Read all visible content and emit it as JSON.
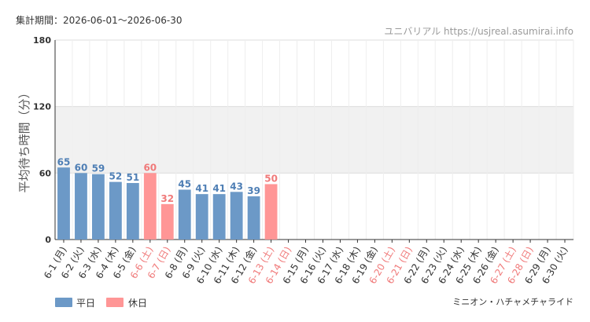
{
  "header": {
    "period": "集計期間：2026-06-01～2026-06-30",
    "site": "ユニバリアル  https://usjreal.asumirai.info"
  },
  "footer": {
    "attraction": "ミニオン・ハチャメチャライド"
  },
  "colors": {
    "weekday": "#6c99c7",
    "holiday": "#ff9696",
    "weekday_text": "#4f7fb5",
    "holiday_text": "#f07a7a",
    "band": "#f1f1f1",
    "grid": "#dddddd"
  },
  "chart_data": {
    "type": "bar",
    "ylabel": "平均待ち時間（分）",
    "ylim": [
      0,
      180
    ],
    "yticks": [
      0,
      60,
      120,
      180
    ],
    "shaded_band": [
      60,
      120
    ],
    "grid": true,
    "legend_position": "bottom-left",
    "categories": [
      "6-1 (月)",
      "6-2 (火)",
      "6-3 (水)",
      "6-4 (木)",
      "6-5 (金)",
      "6-6 (土)",
      "6-7 (日)",
      "6-8 (月)",
      "6-9 (火)",
      "6-10 (水)",
      "6-11 (木)",
      "6-12 (金)",
      "6-13 (土)",
      "6-14 (日)",
      "6-15 (月)",
      "6-16 (火)",
      "6-17 (水)",
      "6-18 (木)",
      "6-19 (金)",
      "6-20 (土)",
      "6-21 (日)",
      "6-22 (月)",
      "6-23 (火)",
      "6-24 (水)",
      "6-25 (木)",
      "6-26 (金)",
      "6-27 (土)",
      "6-28 (日)",
      "6-29 (月)",
      "6-30 (火)"
    ],
    "day_type": [
      "平日",
      "平日",
      "平日",
      "平日",
      "平日",
      "休日",
      "休日",
      "平日",
      "平日",
      "平日",
      "平日",
      "平日",
      "休日",
      "休日",
      "平日",
      "平日",
      "平日",
      "平日",
      "平日",
      "休日",
      "休日",
      "平日",
      "平日",
      "平日",
      "平日",
      "平日",
      "休日",
      "休日",
      "平日",
      "平日"
    ],
    "values": [
      65,
      60,
      59,
      52,
      51,
      60,
      32,
      45,
      41,
      41,
      43,
      39,
      50,
      null,
      null,
      null,
      null,
      null,
      null,
      null,
      null,
      null,
      null,
      null,
      null,
      null,
      null,
      null,
      null,
      null
    ],
    "series": [
      {
        "name": "平日",
        "color": "#6c99c7"
      },
      {
        "name": "休日",
        "color": "#ff9696"
      }
    ]
  }
}
